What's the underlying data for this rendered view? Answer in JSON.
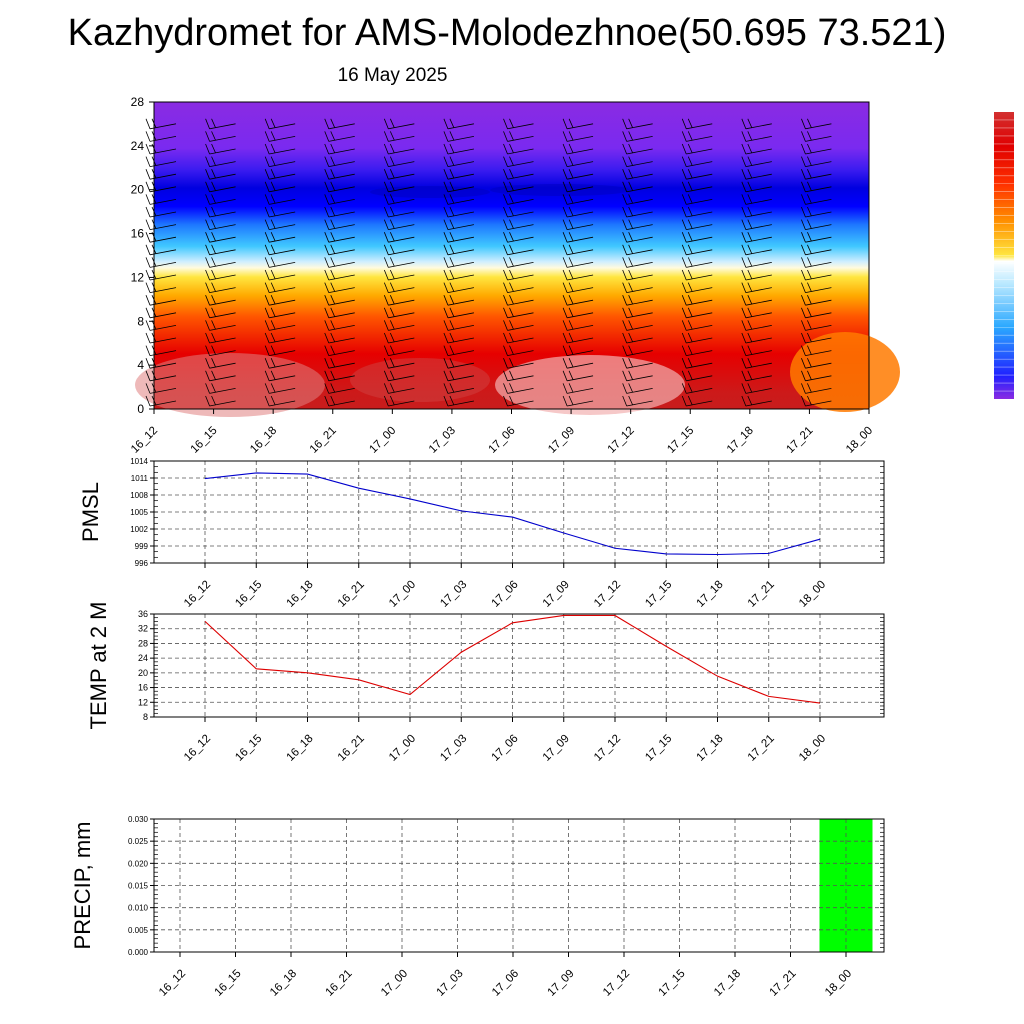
{
  "header": {
    "title": "Kazhydromet for AMS-Molodezhnoe(50.695 73.521)",
    "subtitle": "16 May 2025"
  },
  "chart_data": [
    {
      "type": "heatmap",
      "name": "vertical-cross-section",
      "ylabel": "",
      "ylim": [
        0,
        28
      ],
      "yticks": [
        "0",
        "4",
        "8",
        "12",
        "16",
        "20",
        "24",
        "28"
      ],
      "categories": [
        "16_12",
        "16_15",
        "16_18",
        "16_21",
        "17_00",
        "17_03",
        "17_06",
        "17_09",
        "17_12",
        "17_15",
        "17_18",
        "17_21",
        "18_00"
      ],
      "grid": false,
      "overlay": "wind barbs",
      "colorbar": "right, unlabeled",
      "colors": {
        "violet": "#8a2be2",
        "blue": "#1010ff",
        "cyan": "#40c8ff",
        "yellow": "#ffe640",
        "orange": "#ff8c00",
        "red": "#e60000",
        "darkred": "#c81c1c"
      }
    },
    {
      "type": "line",
      "name": "pmsl",
      "ylabel": "PMSL",
      "ylim": [
        996,
        1014
      ],
      "yticks": [
        "996",
        "999",
        "1002",
        "1005",
        "1008",
        "1011",
        "1014"
      ],
      "categories": [
        "16_12",
        "16_15",
        "16_18",
        "16_21",
        "17_00",
        "17_03",
        "17_06",
        "17_09",
        "17_12",
        "17_15",
        "17_18",
        "17_21",
        "18_00"
      ],
      "values": [
        1010.9,
        1011.9,
        1011.7,
        1009.2,
        1007.3,
        1005.2,
        1004.1,
        1001.3,
        998.6,
        997.6,
        997.5,
        997.7,
        1000.2
      ],
      "color": "#0000cc",
      "grid": true
    },
    {
      "type": "line",
      "name": "temp",
      "ylabel": "TEMP at 2 M",
      "ylim": [
        8,
        36
      ],
      "yticks": [
        "8",
        "12",
        "16",
        "20",
        "24",
        "28",
        "32",
        "36"
      ],
      "categories": [
        "16_12",
        "16_15",
        "16_18",
        "16_21",
        "17_00",
        "17_03",
        "17_06",
        "17_09",
        "17_12",
        "17_15",
        "17_18",
        "17_21",
        "18_00"
      ],
      "values": [
        34.0,
        21.1,
        20.0,
        18.1,
        14.1,
        25.6,
        33.6,
        35.6,
        35.6,
        27.2,
        19.1,
        13.6,
        11.8
      ],
      "color": "#dd0000",
      "grid": true
    },
    {
      "type": "bar",
      "name": "precip",
      "ylabel": "PRECIP, mm",
      "ylim": [
        0,
        0.03
      ],
      "yticks": [
        "0.000",
        "0.005",
        "0.010",
        "0.015",
        "0.020",
        "0.025",
        "0.030"
      ],
      "categories": [
        "16_12",
        "16_15",
        "16_18",
        "16_21",
        "17_00",
        "17_03",
        "17_06",
        "17_09",
        "17_12",
        "17_15",
        "17_18",
        "17_21",
        "18_00"
      ],
      "values": [
        0,
        0,
        0,
        0,
        0,
        0,
        0,
        0,
        0,
        0,
        0,
        0,
        0.03
      ],
      "color": "#00ff00",
      "grid": true
    }
  ]
}
